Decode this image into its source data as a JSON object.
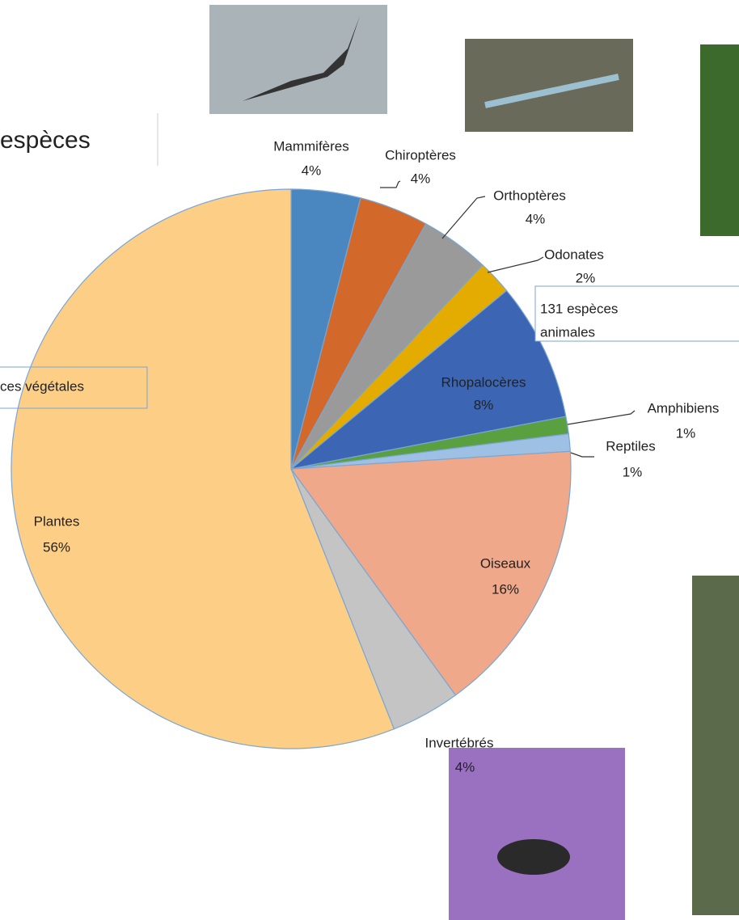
{
  "chart_data": {
    "type": "pie",
    "title": "espèces",
    "annotations": [
      "ces végétales",
      "131 espèces",
      "animales"
    ],
    "categories": [
      "Mammifères",
      "Chiroptères",
      "Orthoptères",
      "Odonates",
      "Rhopalocères",
      "Amphibiens",
      "Reptiles",
      "Oiseaux",
      "Invertébrés",
      "Plantes"
    ],
    "values": [
      4,
      4,
      4,
      2,
      8,
      1,
      1,
      16,
      4,
      56
    ],
    "value_labels": [
      "4%",
      "4%",
      "4%",
      "2%",
      "8%",
      "1%",
      "1%",
      "16%",
      "4%",
      "56%"
    ],
    "colors": [
      "#4a86c0",
      "#d2692a",
      "#9a9a9a",
      "#e4ac00",
      "#3c66b4",
      "#5aa040",
      "#9ec0e4",
      "#f0a88a",
      "#c4c4c4",
      "#fdcf86"
    ]
  }
}
